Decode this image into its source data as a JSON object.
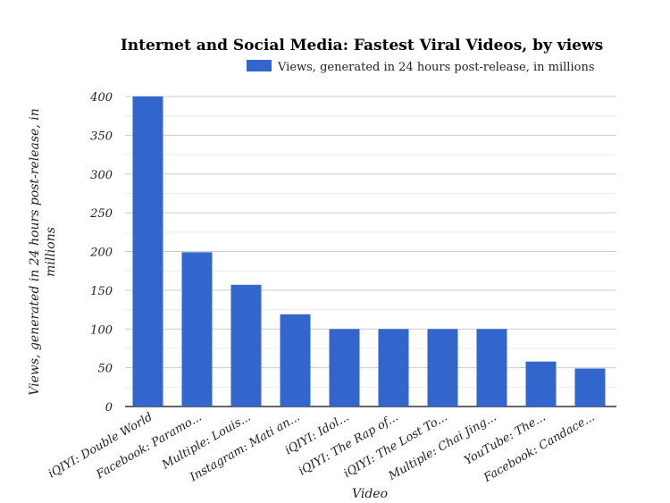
{
  "chart_data": {
    "type": "bar",
    "title": "Internet and Social Media: Fastest Viral Videos, by views",
    "xlabel": "Video",
    "ylabel": "Views, generated in 24 hours post-release, in millions",
    "ylim": [
      0,
      400
    ],
    "yticks": [
      0,
      50,
      100,
      150,
      200,
      250,
      300,
      350,
      400
    ],
    "grid": true,
    "legend_position": "top-right",
    "color": "#3366cc",
    "categories": [
      "iQIYI: Double World",
      "Facebook: Paramo...",
      "Multiple: Louis...",
      "Instagram: Mati an...",
      "iQIYI: Idol...",
      "iQIYI: The Rap of...",
      "iQIYI: The Lost To...",
      "Multiple: Chai Jing...",
      "YouTube: The...",
      "Facebook: Candace..."
    ],
    "series": [
      {
        "name": "Views, generated in 24 hours post-release, in millions",
        "values": [
          400,
          199,
          157,
          119,
          100,
          100,
          100,
          100,
          58,
          49
        ]
      }
    ]
  }
}
